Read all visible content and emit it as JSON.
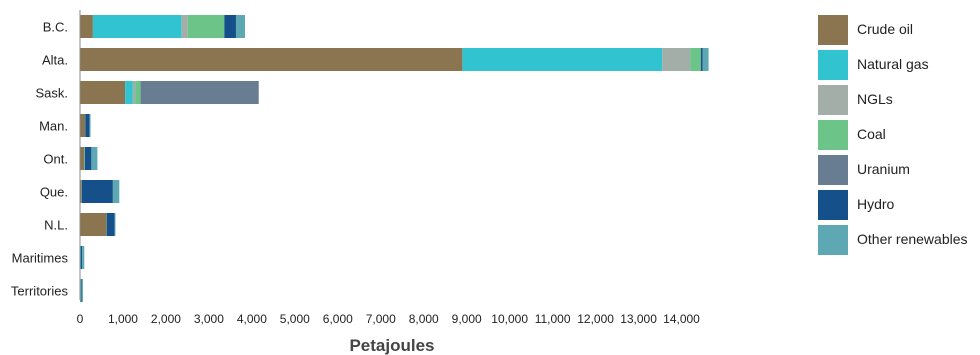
{
  "chart_data": {
    "type": "bar",
    "orientation": "horizontal",
    "stacked": true,
    "categories": [
      "B.C.",
      "Alta.",
      "Sask.",
      "Man.",
      "Ont.",
      "Que.",
      "N.L.",
      "Maritimes",
      "Territories"
    ],
    "series": [
      {
        "name": "Crude oil",
        "color": "#8b7550",
        "values": [
          300,
          8900,
          1050,
          120,
          100,
          40,
          620,
          10,
          20
        ]
      },
      {
        "name": "Natural gas",
        "color": "#31c3cf",
        "values": [
          2060,
          4650,
          180,
          5,
          10,
          5,
          5,
          10,
          15
        ]
      },
      {
        "name": "NGLs",
        "color": "#a3aea8",
        "values": [
          150,
          650,
          60,
          0,
          5,
          0,
          0,
          0,
          0
        ]
      },
      {
        "name": "Coal",
        "color": "#6cc488",
        "values": [
          850,
          250,
          120,
          0,
          0,
          0,
          0,
          0,
          0
        ]
      },
      {
        "name": "Uranium",
        "color": "#687d91",
        "values": [
          0,
          0,
          2750,
          0,
          0,
          0,
          0,
          0,
          0
        ]
      },
      {
        "name": "Hydro",
        "color": "#15508a",
        "values": [
          270,
          40,
          0,
          100,
          150,
          720,
          180,
          30,
          15
        ]
      },
      {
        "name": "Other renewables",
        "color": "#5ea8b4",
        "values": [
          210,
          140,
          0,
          20,
          140,
          150,
          20,
          50,
          10
        ]
      }
    ],
    "xlabel": "Petajoules",
    "ylabel": "",
    "xlim": [
      0,
      14500
    ],
    "xticks": [
      0,
      1000,
      2000,
      3000,
      4000,
      5000,
      6000,
      7000,
      8000,
      9000,
      10000,
      11000,
      12000,
      13000,
      14000
    ],
    "xtick_labels": [
      "0",
      "1,000",
      "2,000",
      "3,000",
      "4,000",
      "5,000",
      "6,000",
      "7,000",
      "8,000",
      "9,000",
      "10,000",
      "11,000",
      "12,000",
      "13,000",
      "14,000"
    ],
    "grid": false,
    "legend_position": "right"
  }
}
